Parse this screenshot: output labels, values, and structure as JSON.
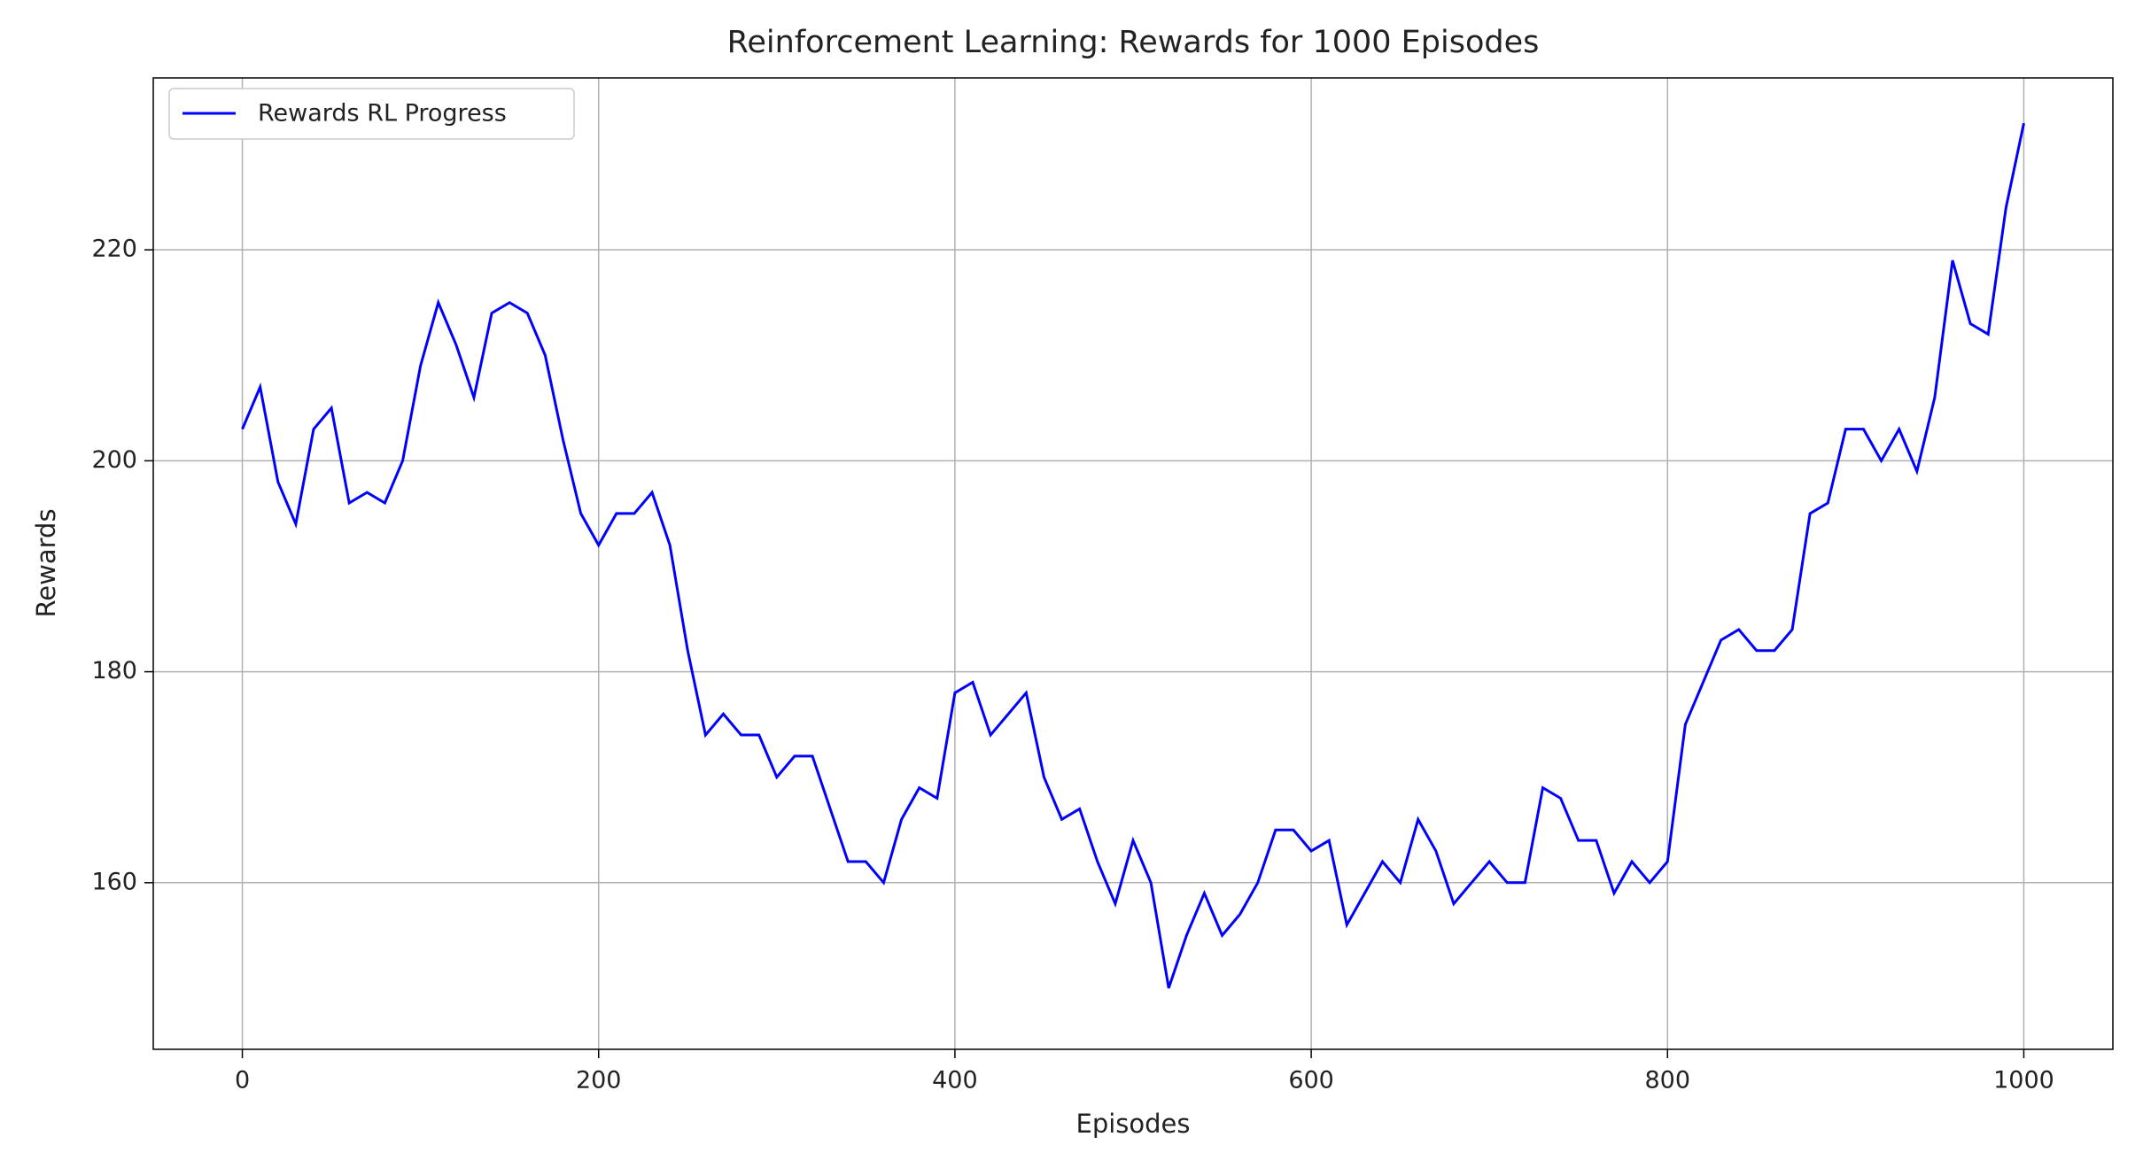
{
  "chart_data": {
    "type": "line",
    "title": "Reinforcement Learning: Rewards for 1000 Episodes",
    "xlabel": "Episodes",
    "ylabel": "Rewards",
    "x": [
      0,
      10,
      20,
      30,
      40,
      50,
      60,
      70,
      80,
      90,
      100,
      110,
      120,
      130,
      140,
      150,
      160,
      170,
      180,
      190,
      200,
      210,
      220,
      230,
      240,
      250,
      260,
      270,
      280,
      290,
      300,
      310,
      320,
      330,
      340,
      350,
      360,
      370,
      380,
      390,
      400,
      410,
      420,
      430,
      440,
      450,
      460,
      470,
      480,
      490,
      500,
      510,
      520,
      530,
      540,
      550,
      560,
      570,
      580,
      590,
      600,
      610,
      620,
      630,
      640,
      650,
      660,
      670,
      680,
      690,
      700,
      710,
      720,
      730,
      740,
      750,
      760,
      770,
      780,
      790,
      800,
      810,
      820,
      830,
      840,
      850,
      860,
      870,
      880,
      890,
      900,
      910,
      920,
      930,
      940,
      950,
      960,
      970,
      980,
      990,
      1000
    ],
    "series": [
      {
        "name": "Rewards RL Progress",
        "color": "#0000ff",
        "values": [
          203,
          207,
          198,
          194,
          203,
          205,
          196,
          197,
          196,
          200,
          209,
          215,
          211,
          206,
          214,
          215,
          214,
          210,
          202,
          195,
          192,
          195,
          195,
          197,
          192,
          182,
          174,
          176,
          174,
          174,
          170,
          172,
          172,
          167,
          162,
          162,
          160,
          166,
          169,
          168,
          178,
          179,
          174,
          176,
          178,
          170,
          166,
          167,
          162,
          158,
          164,
          160,
          150,
          155,
          159,
          155,
          157,
          160,
          165,
          165,
          163,
          164,
          156,
          159,
          162,
          160,
          166,
          163,
          158,
          160,
          162,
          160,
          160,
          169,
          168,
          164,
          164,
          159,
          162,
          160,
          162,
          175,
          179,
          183,
          184,
          182,
          182,
          184,
          195,
          196,
          203,
          203,
          200,
          203,
          199,
          206,
          219,
          213,
          212,
          224,
          232
        ]
      }
    ],
    "xlim": [
      -50,
      1050
    ],
    "ylim": [
      144.2,
      236.3
    ],
    "xticks": [
      0,
      200,
      400,
      600,
      800,
      1000
    ],
    "yticks": [
      160,
      180,
      200,
      220
    ],
    "grid": true,
    "legend": "upper left"
  }
}
